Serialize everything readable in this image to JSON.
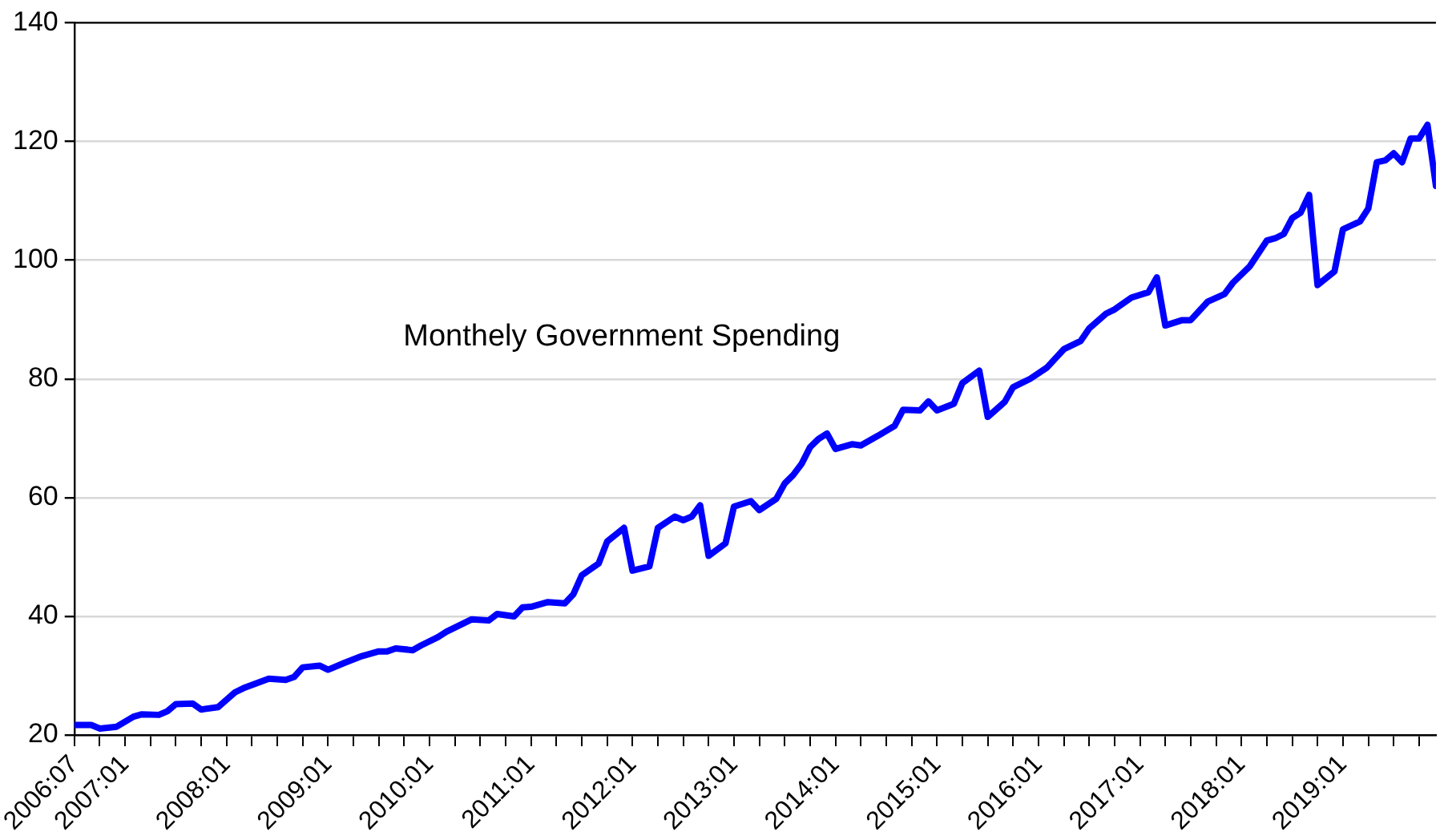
{
  "chart_data": {
    "type": "line",
    "annotations": [
      "Monthely Government Spending"
    ],
    "x": [
      "2006-07",
      "2006-09",
      "2006-10",
      "2006-12",
      "2007-02",
      "2007-03",
      "2007-05",
      "2007-06",
      "2007-07",
      "2007-09",
      "2007-10",
      "2007-12",
      "2008-02",
      "2008-03",
      "2008-06",
      "2008-08",
      "2008-09",
      "2008-10",
      "2008-12",
      "2009-01",
      "2009-03",
      "2009-05",
      "2009-07",
      "2009-08",
      "2009-09",
      "2009-11",
      "2009-12",
      "2010-02",
      "2010-03",
      "2010-06",
      "2010-08",
      "2010-09",
      "2010-11",
      "2010-12",
      "2011-01",
      "2011-03",
      "2011-05",
      "2011-06",
      "2011-07",
      "2011-09",
      "2011-10",
      "2011-12",
      "2012-01",
      "2012-03",
      "2012-04",
      "2012-06",
      "2012-07",
      "2012-08",
      "2012-09",
      "2012-10",
      "2012-12",
      "2013-01",
      "2013-03",
      "2013-04",
      "2013-06",
      "2013-07",
      "2013-08",
      "2013-09",
      "2013-10",
      "2013-11",
      "2013-12",
      "2014-01",
      "2014-03",
      "2014-04",
      "2014-06",
      "2014-08",
      "2014-09",
      "2014-11",
      "2014-12",
      "2015-01",
      "2015-03",
      "2015-04",
      "2015-06",
      "2015-07",
      "2015-09",
      "2015-10",
      "2015-12",
      "2016-02",
      "2016-04",
      "2016-06",
      "2016-07",
      "2016-09",
      "2016-10",
      "2016-12",
      "2017-02",
      "2017-03",
      "2017-04",
      "2017-06",
      "2017-07",
      "2017-09",
      "2017-11",
      "2017-12",
      "2018-02",
      "2018-04",
      "2018-05",
      "2018-06",
      "2018-07",
      "2018-08",
      "2018-09",
      "2018-10",
      "2018-12",
      "2019-01",
      "2019-03",
      "2019-04",
      "2019-05",
      "2019-06",
      "2019-07",
      "2019-08",
      "2019-09",
      "2019-10",
      "2019-11",
      "2019-12"
    ],
    "series": [
      {
        "color": "#0000ff",
        "values": [
          21.7,
          21.7,
          21.1,
          21.4,
          23.1,
          23.5,
          23.4,
          24.0,
          25.2,
          25.3,
          24.3,
          24.7,
          27.2,
          27.9,
          29.5,
          29.3,
          29.8,
          31.4,
          31.7,
          31.0,
          32.2,
          33.3,
          34.1,
          34.1,
          34.6,
          34.3,
          35.1,
          36.5,
          37.4,
          39.5,
          39.3,
          40.4,
          40.0,
          41.5,
          41.6,
          42.4,
          42.2,
          43.7,
          46.9,
          48.9,
          52.6,
          54.9,
          47.7,
          48.4,
          54.9,
          56.8,
          56.2,
          56.8,
          58.7,
          50.2,
          52.3,
          58.5,
          59.4,
          57.9,
          59.8,
          62.4,
          63.8,
          65.7,
          68.5,
          69.9,
          70.8,
          68.2,
          69.0,
          68.8,
          70.4,
          72.1,
          74.8,
          74.7,
          76.2,
          74.7,
          75.8,
          79.3,
          81.4,
          73.6,
          76.1,
          78.6,
          80.0,
          81.9,
          85.0,
          86.4,
          88.5,
          91.0,
          91.7,
          93.7,
          94.6,
          97.1,
          89.0,
          89.9,
          89.9,
          93.0,
          94.3,
          96.2,
          99.0,
          103.3,
          103.7,
          104.4,
          107.1,
          108.0,
          111.0,
          95.8,
          98.1,
          105.2,
          106.5,
          108.7,
          116.5,
          116.8,
          118.0,
          116.5,
          120.5,
          120.5,
          122.8,
          112.5
        ]
      }
    ],
    "xlim": [
      "2006-07",
      "2019-12"
    ],
    "xticks": [
      {
        "value": "2006-07",
        "label": "2006:07"
      },
      {
        "value": "2006-10",
        "label": null
      },
      {
        "value": "2007-01",
        "label": "2007:01"
      },
      {
        "value": "2007-04",
        "label": null
      },
      {
        "value": "2007-07",
        "label": null
      },
      {
        "value": "2007-10",
        "label": null
      },
      {
        "value": "2008-01",
        "label": "2008:01"
      },
      {
        "value": "2008-04",
        "label": null
      },
      {
        "value": "2008-07",
        "label": null
      },
      {
        "value": "2008-10",
        "label": null
      },
      {
        "value": "2009-01",
        "label": "2009:01"
      },
      {
        "value": "2009-04",
        "label": null
      },
      {
        "value": "2009-07",
        "label": null
      },
      {
        "value": "2009-10",
        "label": null
      },
      {
        "value": "2010-01",
        "label": "2010:01"
      },
      {
        "value": "2010-04",
        "label": null
      },
      {
        "value": "2010-07",
        "label": null
      },
      {
        "value": "2010-10",
        "label": null
      },
      {
        "value": "2011-01",
        "label": "2011:01"
      },
      {
        "value": "2011-04",
        "label": null
      },
      {
        "value": "2011-07",
        "label": null
      },
      {
        "value": "2011-10",
        "label": null
      },
      {
        "value": "2012-01",
        "label": "2012:01"
      },
      {
        "value": "2012-04",
        "label": null
      },
      {
        "value": "2012-07",
        "label": null
      },
      {
        "value": "2012-10",
        "label": null
      },
      {
        "value": "2013-01",
        "label": "2013:01"
      },
      {
        "value": "2013-04",
        "label": null
      },
      {
        "value": "2013-07",
        "label": null
      },
      {
        "value": "2013-10",
        "label": null
      },
      {
        "value": "2014-01",
        "label": "2014:01"
      },
      {
        "value": "2014-04",
        "label": null
      },
      {
        "value": "2014-07",
        "label": null
      },
      {
        "value": "2014-10",
        "label": null
      },
      {
        "value": "2015-01",
        "label": "2015:01"
      },
      {
        "value": "2015-04",
        "label": null
      },
      {
        "value": "2015-07",
        "label": null
      },
      {
        "value": "2015-10",
        "label": null
      },
      {
        "value": "2016-01",
        "label": "2016:01"
      },
      {
        "value": "2016-04",
        "label": null
      },
      {
        "value": "2016-07",
        "label": null
      },
      {
        "value": "2016-10",
        "label": null
      },
      {
        "value": "2017-01",
        "label": "2017:01"
      },
      {
        "value": "2017-04",
        "label": null
      },
      {
        "value": "2017-07",
        "label": null
      },
      {
        "value": "2017-10",
        "label": null
      },
      {
        "value": "2018-01",
        "label": "2018:01"
      },
      {
        "value": "2018-04",
        "label": null
      },
      {
        "value": "2018-07",
        "label": null
      },
      {
        "value": "2018-10",
        "label": null
      },
      {
        "value": "2019-01",
        "label": "2019:01"
      },
      {
        "value": "2019-04",
        "label": null
      },
      {
        "value": "2019-07",
        "label": null
      },
      {
        "value": "2019-10",
        "label": null
      }
    ],
    "ylim": [
      20,
      140
    ],
    "yticks": [
      20,
      40,
      60,
      80,
      100,
      120,
      140
    ],
    "grid": "y",
    "legend": false,
    "marker": "none",
    "line_style": "solid"
  }
}
